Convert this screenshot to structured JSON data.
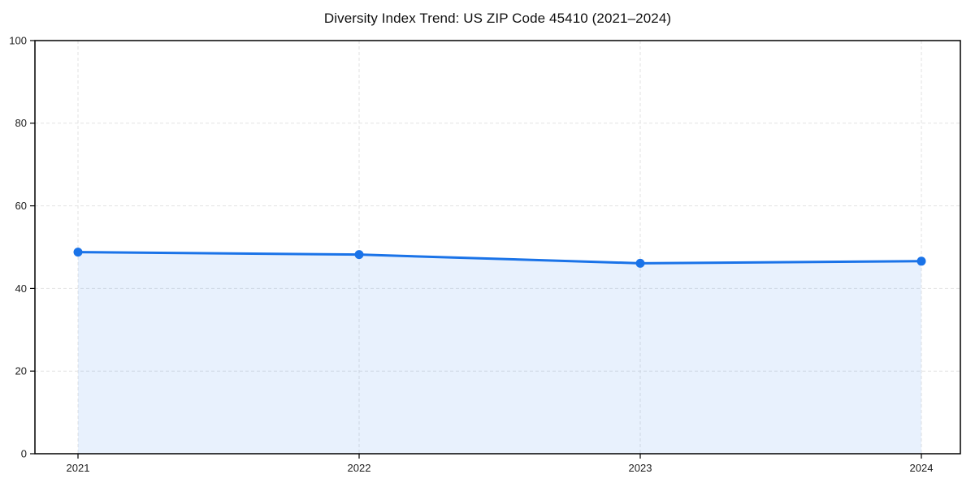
{
  "chart_data": {
    "type": "area",
    "title": "Diversity Index Trend: US ZIP Code 45410 (2021–2024)",
    "x": [
      "2021",
      "2022",
      "2023",
      "2024"
    ],
    "values": [
      48.8,
      48.2,
      46.1,
      46.6
    ],
    "xlabel": "",
    "ylabel": "",
    "ylim": [
      0,
      100
    ],
    "yticks": [
      0,
      20,
      40,
      60,
      80,
      100
    ],
    "grid": true,
    "grid_style": "dashed",
    "legend": "none",
    "line_color": "#1a73e8",
    "marker_color": "#1a73e8",
    "fill_color": "#1a73e8",
    "fill_opacity": 0.1,
    "grid_color": "#e2e2e2",
    "spine_color": "#000000",
    "background_color": "#ffffff"
  }
}
